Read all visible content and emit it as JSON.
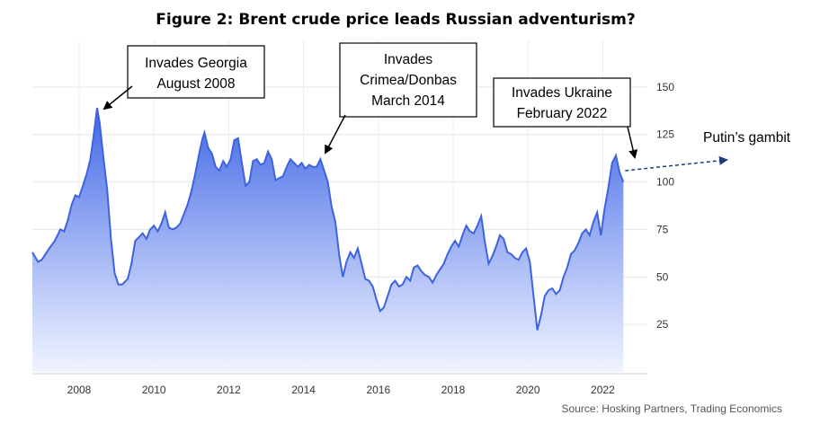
{
  "chart_data": {
    "type": "area",
    "title": "Figure 2: Brent crude price leads Russian adventurism?",
    "source": "Source: Hosking Partners, Trading Economics",
    "xlabel": "",
    "ylabel": "",
    "xlim": [
      2006.75,
      2023.0
    ],
    "ylim": [
      0,
      175
    ],
    "x_ticks": [
      "2008",
      "2010",
      "2012",
      "2014",
      "2016",
      "2018",
      "2020",
      "2022"
    ],
    "y_ticks": [
      "25",
      "50",
      "75",
      "100",
      "125",
      "150"
    ],
    "grid": true,
    "colors": {
      "line": "#3d63e0",
      "fill_top": "#3f66e6",
      "fill_bottom": "#eef2ff",
      "arrow": "#1f3c78"
    },
    "series": [
      {
        "values": [
          [
            2006.75,
            63
          ],
          [
            2006.9,
            58
          ],
          [
            2007.0,
            59
          ],
          [
            2007.1,
            62
          ],
          [
            2007.2,
            65
          ],
          [
            2007.35,
            69
          ],
          [
            2007.5,
            75
          ],
          [
            2007.6,
            74
          ],
          [
            2007.7,
            80
          ],
          [
            2007.8,
            88
          ],
          [
            2007.9,
            93
          ],
          [
            2008.0,
            92
          ],
          [
            2008.1,
            98
          ],
          [
            2008.2,
            104
          ],
          [
            2008.3,
            112
          ],
          [
            2008.4,
            126
          ],
          [
            2008.48,
            139
          ],
          [
            2008.55,
            131
          ],
          [
            2008.65,
            113
          ],
          [
            2008.75,
            96
          ],
          [
            2008.85,
            70
          ],
          [
            2008.95,
            52
          ],
          [
            2009.05,
            46
          ],
          [
            2009.15,
            46
          ],
          [
            2009.3,
            49
          ],
          [
            2009.4,
            57
          ],
          [
            2009.5,
            69
          ],
          [
            2009.6,
            71
          ],
          [
            2009.7,
            73
          ],
          [
            2009.8,
            70
          ],
          [
            2009.9,
            75
          ],
          [
            2010.0,
            77
          ],
          [
            2010.1,
            74
          ],
          [
            2010.2,
            78
          ],
          [
            2010.3,
            84
          ],
          [
            2010.4,
            76
          ],
          [
            2010.5,
            75
          ],
          [
            2010.6,
            76
          ],
          [
            2010.7,
            78
          ],
          [
            2010.8,
            83
          ],
          [
            2010.9,
            88
          ],
          [
            2011.0,
            95
          ],
          [
            2011.1,
            104
          ],
          [
            2011.2,
            114
          ],
          [
            2011.3,
            123
          ],
          [
            2011.35,
            126
          ],
          [
            2011.45,
            118
          ],
          [
            2011.55,
            115
          ],
          [
            2011.65,
            108
          ],
          [
            2011.75,
            106
          ],
          [
            2011.85,
            111
          ],
          [
            2011.95,
            108
          ],
          [
            2012.05,
            112
          ],
          [
            2012.15,
            122
          ],
          [
            2012.25,
            123
          ],
          [
            2012.35,
            110
          ],
          [
            2012.45,
            98
          ],
          [
            2012.55,
            100
          ],
          [
            2012.65,
            111
          ],
          [
            2012.75,
            112
          ],
          [
            2012.85,
            109
          ],
          [
            2012.95,
            110
          ],
          [
            2013.05,
            116
          ],
          [
            2013.15,
            112
          ],
          [
            2013.25,
            101
          ],
          [
            2013.35,
            102
          ],
          [
            2013.45,
            103
          ],
          [
            2013.55,
            108
          ],
          [
            2013.65,
            112
          ],
          [
            2013.75,
            110
          ],
          [
            2013.85,
            108
          ],
          [
            2013.95,
            110
          ],
          [
            2014.05,
            107
          ],
          [
            2014.15,
            109
          ],
          [
            2014.25,
            108
          ],
          [
            2014.35,
            108
          ],
          [
            2014.45,
            112
          ],
          [
            2014.55,
            106
          ],
          [
            2014.65,
            100
          ],
          [
            2014.75,
            87
          ],
          [
            2014.85,
            79
          ],
          [
            2014.95,
            62
          ],
          [
            2015.05,
            50
          ],
          [
            2015.15,
            58
          ],
          [
            2015.25,
            63
          ],
          [
            2015.35,
            60
          ],
          [
            2015.45,
            65
          ],
          [
            2015.55,
            57
          ],
          [
            2015.65,
            49
          ],
          [
            2015.75,
            48
          ],
          [
            2015.85,
            45
          ],
          [
            2015.95,
            38
          ],
          [
            2016.05,
            32
          ],
          [
            2016.15,
            34
          ],
          [
            2016.25,
            40
          ],
          [
            2016.35,
            46
          ],
          [
            2016.45,
            48
          ],
          [
            2016.55,
            45
          ],
          [
            2016.65,
            46
          ],
          [
            2016.75,
            50
          ],
          [
            2016.85,
            48
          ],
          [
            2016.95,
            55
          ],
          [
            2017.05,
            56
          ],
          [
            2017.15,
            53
          ],
          [
            2017.25,
            51
          ],
          [
            2017.35,
            50
          ],
          [
            2017.45,
            47
          ],
          [
            2017.55,
            51
          ],
          [
            2017.65,
            54
          ],
          [
            2017.75,
            57
          ],
          [
            2017.85,
            62
          ],
          [
            2017.95,
            66
          ],
          [
            2018.05,
            69
          ],
          [
            2018.15,
            66
          ],
          [
            2018.25,
            72
          ],
          [
            2018.35,
            77
          ],
          [
            2018.45,
            74
          ],
          [
            2018.55,
            73
          ],
          [
            2018.65,
            77
          ],
          [
            2018.75,
            82
          ],
          [
            2018.85,
            68
          ],
          [
            2018.95,
            57
          ],
          [
            2019.05,
            61
          ],
          [
            2019.15,
            66
          ],
          [
            2019.25,
            72
          ],
          [
            2019.35,
            70
          ],
          [
            2019.45,
            63
          ],
          [
            2019.55,
            62
          ],
          [
            2019.65,
            60
          ],
          [
            2019.75,
            59
          ],
          [
            2019.85,
            63
          ],
          [
            2019.95,
            65
          ],
          [
            2020.05,
            58
          ],
          [
            2020.15,
            40
          ],
          [
            2020.25,
            22
          ],
          [
            2020.35,
            30
          ],
          [
            2020.45,
            40
          ],
          [
            2020.55,
            43
          ],
          [
            2020.65,
            44
          ],
          [
            2020.75,
            41
          ],
          [
            2020.85,
            43
          ],
          [
            2020.95,
            50
          ],
          [
            2021.05,
            55
          ],
          [
            2021.15,
            62
          ],
          [
            2021.25,
            64
          ],
          [
            2021.35,
            68
          ],
          [
            2021.45,
            73
          ],
          [
            2021.55,
            75
          ],
          [
            2021.65,
            72
          ],
          [
            2021.75,
            79
          ],
          [
            2021.85,
            84
          ],
          [
            2021.95,
            72
          ],
          [
            2022.05,
            86
          ],
          [
            2022.15,
            97
          ],
          [
            2022.25,
            110
          ],
          [
            2022.35,
            114
          ],
          [
            2022.45,
            105
          ],
          [
            2022.55,
            100
          ]
        ]
      }
    ],
    "annotations": [
      {
        "lines": [
          "Invades Georgia",
          "August 2008"
        ]
      },
      {
        "lines": [
          "Invades",
          "Crimea/Donbas",
          "March 2014"
        ]
      },
      {
        "lines": [
          "Invades Ukraine",
          "February 2022"
        ]
      },
      {
        "lines": [
          "Putin’s gambit"
        ]
      }
    ],
    "projection": {
      "from": [
        2022.55,
        105
      ],
      "to": [
        2023.0,
        112
      ]
    }
  }
}
